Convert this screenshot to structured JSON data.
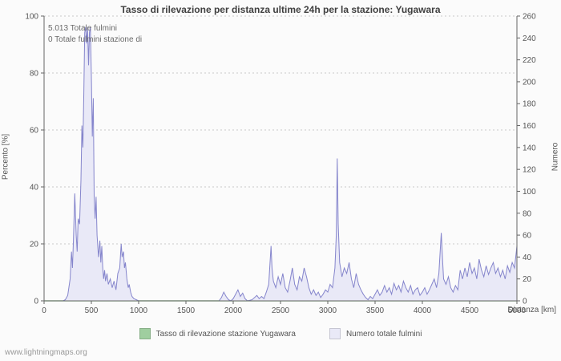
{
  "title": "Tasso di rilevazione per distanza ultime 24h per la stazione: Yugawara",
  "annotations": {
    "line1": "5.013 Totale fulmini",
    "line2": "0 Totale fulmini stazione di"
  },
  "footer": "www.lightningmaps.org",
  "colors": {
    "rate_green": "#9fce9f",
    "count_line": "#8585cc",
    "count_fill": "#e9e9f7",
    "grid": "#c9c9c9",
    "axis": "#666666",
    "text": "#555555"
  },
  "legend": [
    {
      "label": "Tasso di rilevazione stazione Yugawara",
      "color": "#9fce9f"
    },
    {
      "label": "Numero totale fulmini",
      "color": "#e9e9f7"
    }
  ],
  "chart_data": {
    "type": "area",
    "title": "Tasso di rilevazione per distanza ultime 24h per la stazione: Yugawara",
    "xlabel": "Distanza  [km]",
    "ylabel_left": "Percento  [%]",
    "ylabel_right": "Numero",
    "xlim": [
      0,
      5000
    ],
    "xtick_step": 500,
    "ylim_left": [
      0,
      100
    ],
    "ytick_step_left": 20,
    "ylim_right": [
      0,
      260
    ],
    "ytick_step_right": 20,
    "grid": "horizontal-dotted",
    "legend_position": "bottom",
    "totals": {
      "total_lightning": 5013,
      "station_lightning": 0
    },
    "series": [
      {
        "name": "Tasso di rilevazione stazione Yugawara",
        "axis": "left",
        "style": "line",
        "color": "#9fce9f",
        "points": [
          [
            0,
            0
          ],
          [
            5000,
            0
          ]
        ]
      },
      {
        "name": "Numero totale fulmini",
        "axis": "right",
        "style": "area",
        "line_color": "#8585cc",
        "fill_color": "#e9e9f7",
        "points": [
          [
            0,
            0
          ],
          [
            150,
            0
          ],
          [
            200,
            0
          ],
          [
            225,
            1
          ],
          [
            250,
            5
          ],
          [
            275,
            20
          ],
          [
            290,
            45
          ],
          [
            300,
            30
          ],
          [
            310,
            55
          ],
          [
            325,
            98
          ],
          [
            340,
            60
          ],
          [
            350,
            45
          ],
          [
            360,
            75
          ],
          [
            375,
            70
          ],
          [
            390,
            110
          ],
          [
            400,
            160
          ],
          [
            410,
            140
          ],
          [
            420,
            190
          ],
          [
            430,
            245
          ],
          [
            440,
            250
          ],
          [
            450,
            235
          ],
          [
            460,
            250
          ],
          [
            470,
            215
          ],
          [
            480,
            245
          ],
          [
            490,
            250
          ],
          [
            500,
            205
          ],
          [
            510,
            150
          ],
          [
            520,
            185
          ],
          [
            530,
            95
          ],
          [
            540,
            75
          ],
          [
            550,
            95
          ],
          [
            560,
            60
          ],
          [
            575,
            40
          ],
          [
            590,
            55
          ],
          [
            600,
            35
          ],
          [
            610,
            50
          ],
          [
            620,
            30
          ],
          [
            630,
            20
          ],
          [
            640,
            28
          ],
          [
            650,
            18
          ],
          [
            665,
            25
          ],
          [
            680,
            15
          ],
          [
            700,
            20
          ],
          [
            720,
            12
          ],
          [
            740,
            18
          ],
          [
            760,
            10
          ],
          [
            780,
            25
          ],
          [
            800,
            30
          ],
          [
            815,
            52
          ],
          [
            825,
            40
          ],
          [
            840,
            45
          ],
          [
            850,
            30
          ],
          [
            860,
            35
          ],
          [
            875,
            20
          ],
          [
            890,
            12
          ],
          [
            900,
            15
          ],
          [
            915,
            8
          ],
          [
            930,
            4
          ],
          [
            950,
            2
          ],
          [
            975,
            1
          ],
          [
            1000,
            0
          ],
          [
            1850,
            0
          ],
          [
            1875,
            3
          ],
          [
            1900,
            8
          ],
          [
            1925,
            4
          ],
          [
            1950,
            1
          ],
          [
            1975,
            0
          ],
          [
            2000,
            2
          ],
          [
            2025,
            6
          ],
          [
            2050,
            10
          ],
          [
            2075,
            4
          ],
          [
            2100,
            7
          ],
          [
            2125,
            2
          ],
          [
            2150,
            0
          ],
          [
            2200,
            1
          ],
          [
            2250,
            5
          ],
          [
            2275,
            2
          ],
          [
            2300,
            4
          ],
          [
            2325,
            2
          ],
          [
            2350,
            8
          ],
          [
            2375,
            15
          ],
          [
            2400,
            50
          ],
          [
            2410,
            30
          ],
          [
            2425,
            18
          ],
          [
            2450,
            12
          ],
          [
            2475,
            22
          ],
          [
            2500,
            15
          ],
          [
            2525,
            25
          ],
          [
            2550,
            12
          ],
          [
            2575,
            8
          ],
          [
            2600,
            18
          ],
          [
            2625,
            30
          ],
          [
            2650,
            15
          ],
          [
            2675,
            10
          ],
          [
            2700,
            22
          ],
          [
            2725,
            18
          ],
          [
            2750,
            30
          ],
          [
            2775,
            22
          ],
          [
            2800,
            12
          ],
          [
            2825,
            6
          ],
          [
            2850,
            10
          ],
          [
            2875,
            5
          ],
          [
            2900,
            8
          ],
          [
            2925,
            3
          ],
          [
            2950,
            6
          ],
          [
            2975,
            10
          ],
          [
            3000,
            8
          ],
          [
            3025,
            15
          ],
          [
            3050,
            12
          ],
          [
            3075,
            30
          ],
          [
            3090,
            60
          ],
          [
            3100,
            130
          ],
          [
            3110,
            70
          ],
          [
            3125,
            35
          ],
          [
            3150,
            22
          ],
          [
            3175,
            30
          ],
          [
            3200,
            25
          ],
          [
            3225,
            35
          ],
          [
            3250,
            20
          ],
          [
            3275,
            12
          ],
          [
            3300,
            25
          ],
          [
            3325,
            15
          ],
          [
            3350,
            10
          ],
          [
            3375,
            6
          ],
          [
            3400,
            3
          ],
          [
            3425,
            1
          ],
          [
            3450,
            4
          ],
          [
            3475,
            2
          ],
          [
            3500,
            6
          ],
          [
            3525,
            10
          ],
          [
            3550,
            5
          ],
          [
            3575,
            8
          ],
          [
            3600,
            14
          ],
          [
            3625,
            8
          ],
          [
            3650,
            12
          ],
          [
            3675,
            6
          ],
          [
            3700,
            16
          ],
          [
            3725,
            10
          ],
          [
            3750,
            14
          ],
          [
            3775,
            8
          ],
          [
            3800,
            18
          ],
          [
            3825,
            12
          ],
          [
            3850,
            8
          ],
          [
            3875,
            14
          ],
          [
            3900,
            6
          ],
          [
            3925,
            10
          ],
          [
            3950,
            12
          ],
          [
            3975,
            5
          ],
          [
            4000,
            8
          ],
          [
            4025,
            12
          ],
          [
            4050,
            6
          ],
          [
            4075,
            10
          ],
          [
            4100,
            15
          ],
          [
            4125,
            20
          ],
          [
            4150,
            12
          ],
          [
            4175,
            25
          ],
          [
            4200,
            62
          ],
          [
            4215,
            35
          ],
          [
            4225,
            20
          ],
          [
            4250,
            15
          ],
          [
            4275,
            22
          ],
          [
            4300,
            12
          ],
          [
            4325,
            8
          ],
          [
            4350,
            14
          ],
          [
            4375,
            10
          ],
          [
            4400,
            28
          ],
          [
            4425,
            20
          ],
          [
            4450,
            30
          ],
          [
            4475,
            22
          ],
          [
            4500,
            35
          ],
          [
            4525,
            25
          ],
          [
            4550,
            30
          ],
          [
            4575,
            20
          ],
          [
            4600,
            38
          ],
          [
            4625,
            28
          ],
          [
            4650,
            22
          ],
          [
            4675,
            32
          ],
          [
            4700,
            24
          ],
          [
            4725,
            30
          ],
          [
            4750,
            35
          ],
          [
            4775,
            25
          ],
          [
            4800,
            30
          ],
          [
            4825,
            22
          ],
          [
            4850,
            28
          ],
          [
            4875,
            20
          ],
          [
            4900,
            32
          ],
          [
            4925,
            26
          ],
          [
            4950,
            35
          ],
          [
            4975,
            30
          ],
          [
            5000,
            50
          ]
        ]
      }
    ]
  }
}
